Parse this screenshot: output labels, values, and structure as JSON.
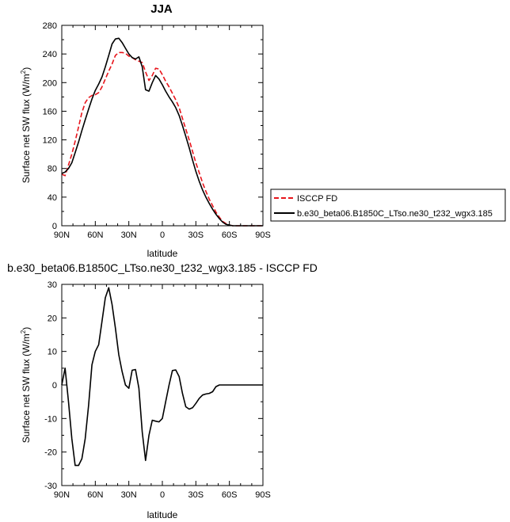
{
  "chart_data": [
    {
      "type": "line",
      "title": "JJA",
      "xlabel": "latitude",
      "ylabel": "Surface net SW flux (W/m",
      "ylabel_sup": "2",
      "ylabel_close": ")",
      "xlim": [
        90,
        -90
      ],
      "ylim": [
        0,
        280
      ],
      "xticks": [
        90,
        60,
        30,
        0,
        -30,
        -60,
        -90
      ],
      "xtick_labels": [
        "90N",
        "60N",
        "30N",
        "0",
        "30S",
        "60S",
        "90S"
      ],
      "yticks": [
        0,
        40,
        80,
        120,
        160,
        200,
        240,
        280
      ],
      "ytick_labels": [
        "0",
        "40",
        "80",
        "120",
        "160",
        "200",
        "240",
        "280"
      ],
      "legend_position": "right",
      "series": [
        {
          "name": "ISCCP FD",
          "color": "#e8141b",
          "dash": "dashed",
          "x": [
            90,
            87,
            84,
            81,
            78,
            75,
            72,
            69,
            66,
            63,
            60,
            57,
            54,
            51,
            48,
            45,
            42,
            39,
            36,
            33,
            30,
            27,
            24,
            21,
            18,
            15,
            12,
            9,
            6,
            3,
            0,
            -3,
            -6,
            -9,
            -12,
            -15,
            -18,
            -21,
            -24,
            -27,
            -30,
            -33,
            -36,
            -39,
            -42,
            -45,
            -48,
            -51,
            -54,
            -57,
            -60,
            -63,
            -66,
            -69,
            -72,
            -75,
            -78,
            -81,
            -84,
            -87,
            -90
          ],
          "y": [
            72,
            70,
            85,
            100,
            118,
            138,
            158,
            172,
            179,
            182,
            183,
            186,
            194,
            205,
            216,
            226,
            238,
            242,
            242,
            241,
            237,
            235,
            232,
            230,
            228,
            215,
            203,
            210,
            220,
            219,
            211,
            202,
            194,
            185,
            176,
            165,
            150,
            135,
            120,
            104,
            88,
            74,
            60,
            48,
            37,
            28,
            19,
            12,
            6,
            3,
            1,
            0,
            0,
            0,
            0,
            0,
            0,
            0,
            0,
            0,
            0
          ]
        },
        {
          "name": "b.e30_beta06.B1850C_LTso.ne30_t232_wgx3.185",
          "color": "#000000",
          "dash": "solid",
          "x": [
            90,
            87,
            84,
            81,
            78,
            75,
            72,
            69,
            66,
            63,
            60,
            57,
            54,
            51,
            48,
            45,
            42,
            39,
            36,
            33,
            30,
            27,
            24,
            21,
            18,
            15,
            12,
            9,
            6,
            3,
            0,
            -3,
            -6,
            -9,
            -12,
            -15,
            -18,
            -21,
            -24,
            -27,
            -30,
            -33,
            -36,
            -39,
            -42,
            -45,
            -48,
            -51,
            -54,
            -57,
            -60,
            -63,
            -66,
            -69,
            -72,
            -75,
            -78,
            -81,
            -84,
            -87,
            -90
          ],
          "y": [
            73,
            75,
            80,
            88,
            102,
            117,
            133,
            148,
            163,
            177,
            189,
            198,
            208,
            222,
            238,
            254,
            261,
            262,
            256,
            248,
            240,
            235,
            233,
            236,
            222,
            190,
            188,
            200,
            210,
            205,
            197,
            188,
            180,
            173,
            165,
            154,
            140,
            125,
            109,
            92,
            76,
            62,
            50,
            40,
            31,
            23,
            16,
            10,
            5,
            2,
            1,
            0,
            0,
            0,
            0,
            0,
            0,
            0,
            0,
            0,
            0
          ]
        }
      ]
    },
    {
      "type": "line",
      "title": "b.e30_beta06.B1850C_LTso.ne30_t232_wgx3.185 - ISCCP FD",
      "xlabel": "latitude",
      "ylabel": "Surface net SW flux (W/m",
      "ylabel_sup": "2",
      "ylabel_close": ")",
      "xlim": [
        90,
        -90
      ],
      "ylim": [
        -30,
        30
      ],
      "xticks": [
        90,
        60,
        30,
        0,
        -30,
        -60,
        -90
      ],
      "xtick_labels": [
        "90N",
        "60N",
        "30N",
        "0",
        "30S",
        "60S",
        "90S"
      ],
      "yticks": [
        -30,
        -20,
        -10,
        0,
        10,
        20,
        30
      ],
      "ytick_labels": [
        "-30",
        "-20",
        "-10",
        "0",
        "10",
        "20",
        "30"
      ],
      "series": [
        {
          "color": "#000000",
          "dash": "solid",
          "x": [
            90,
            87,
            84,
            81,
            78,
            75,
            72,
            69,
            66,
            63,
            60,
            57,
            54,
            51,
            48,
            45,
            42,
            39,
            36,
            33,
            30,
            27,
            24,
            21,
            18,
            15,
            12,
            9,
            6,
            3,
            0,
            -3,
            -6,
            -9,
            -12,
            -15,
            -18,
            -21,
            -24,
            -27,
            -30,
            -33,
            -36,
            -39,
            -42,
            -45,
            -48,
            -51,
            -54,
            -57,
            -60,
            -63,
            -66,
            -69,
            -72,
            -75,
            -78,
            -81,
            -84,
            -87,
            -90
          ],
          "y": [
            0,
            5,
            -5,
            -16,
            -24,
            -24,
            -22,
            -16,
            -6,
            6,
            10,
            12,
            19,
            26,
            29,
            24,
            17,
            9,
            4,
            0,
            -1,
            4.4,
            4.6,
            -1,
            -14,
            -22.5,
            -15,
            -10.5,
            -10.8,
            -11,
            -10,
            -5,
            0,
            4.3,
            4.5,
            2.5,
            -2.5,
            -6.5,
            -7.2,
            -6.8,
            -5.5,
            -4,
            -3,
            -2.7,
            -2.5,
            -2,
            -0.5,
            0,
            0,
            0,
            0,
            0,
            0,
            0,
            0,
            0,
            0,
            0,
            0,
            0,
            0
          ]
        }
      ]
    }
  ]
}
